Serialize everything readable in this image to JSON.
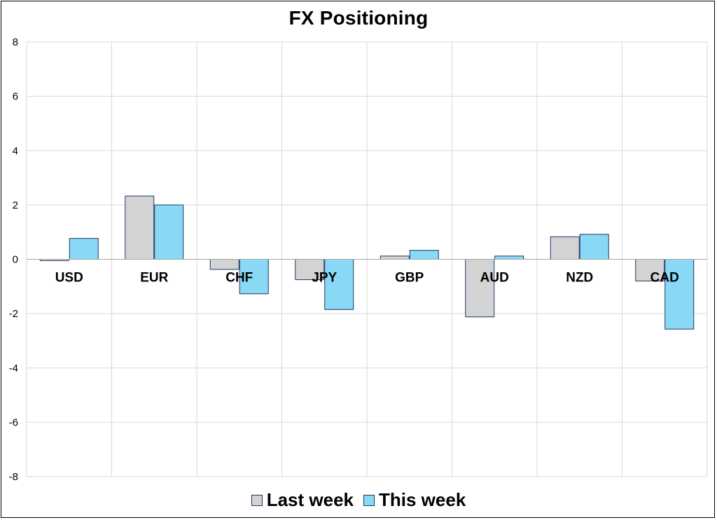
{
  "chart_data": {
    "type": "bar",
    "title": "FX Positioning",
    "categories": [
      "USD",
      "EUR",
      "CHF",
      "JPY",
      "GBP",
      "AUD",
      "NZD",
      "CAD"
    ],
    "series": [
      {
        "name": "Last week",
        "values": [
          -0.05,
          2.33,
          -0.37,
          -0.75,
          0.12,
          -2.12,
          0.83,
          -0.8
        ],
        "color": "#d3d3d3"
      },
      {
        "name": "This week",
        "values": [
          0.77,
          2.0,
          -1.27,
          -1.85,
          0.33,
          0.12,
          0.92,
          -2.57
        ],
        "color": "#89d8f5"
      }
    ],
    "ylim": [
      -8,
      8
    ],
    "yticks": [
      8,
      6,
      4,
      2,
      0,
      -2,
      -4,
      -6,
      -8
    ],
    "grid": true,
    "legend_position": "bottom",
    "bar_edge_color": "#1f3864"
  }
}
